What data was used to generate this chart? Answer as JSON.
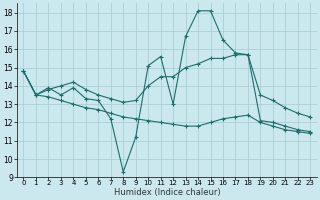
{
  "xlabel": "Humidex (Indice chaleur)",
  "background_color": "#cce8ef",
  "grid_color": "#aacfd8",
  "line_color": "#1a6e6a",
  "xlim": [
    -0.5,
    23.5
  ],
  "ylim": [
    9,
    18.5
  ],
  "yticks": [
    9,
    10,
    11,
    12,
    13,
    14,
    15,
    16,
    17,
    18
  ],
  "xticks": [
    0,
    1,
    2,
    3,
    4,
    5,
    6,
    7,
    8,
    9,
    10,
    11,
    12,
    13,
    14,
    15,
    16,
    17,
    18,
    19,
    20,
    21,
    22,
    23
  ],
  "series": [
    {
      "x": [
        0,
        1,
        2,
        3,
        4,
        5,
        6,
        7,
        8,
        9,
        10,
        11,
        12,
        13,
        14,
        15,
        16,
        17,
        18,
        19,
        20,
        21,
        22,
        23
      ],
      "y": [
        14.8,
        13.5,
        13.9,
        13.5,
        13.9,
        13.3,
        13.2,
        12.2,
        9.3,
        11.2,
        15.1,
        15.6,
        13.0,
        16.7,
        18.1,
        18.1,
        16.5,
        15.8,
        15.7,
        12.1,
        12.0,
        11.8,
        11.6,
        11.5
      ]
    },
    {
      "x": [
        0,
        1,
        2,
        3,
        4,
        5,
        6,
        7,
        8,
        9,
        10,
        11,
        12,
        13,
        14,
        15,
        16,
        17,
        18,
        19,
        20,
        21,
        22,
        23
      ],
      "y": [
        14.8,
        13.5,
        13.8,
        14.0,
        14.2,
        13.8,
        13.5,
        13.3,
        13.1,
        13.2,
        14.0,
        14.5,
        14.5,
        15.0,
        15.2,
        15.5,
        15.5,
        15.7,
        15.7,
        13.5,
        13.2,
        12.8,
        12.5,
        12.3
      ]
    },
    {
      "x": [
        0,
        1,
        2,
        3,
        4,
        5,
        6,
        7,
        8,
        9,
        10,
        11,
        12,
        13,
        14,
        15,
        16,
        17,
        18,
        19,
        20,
        21,
        22,
        23
      ],
      "y": [
        14.8,
        13.5,
        13.4,
        13.2,
        13.0,
        12.8,
        12.7,
        12.5,
        12.3,
        12.2,
        12.1,
        12.0,
        11.9,
        11.8,
        11.8,
        12.0,
        12.2,
        12.3,
        12.4,
        12.0,
        11.8,
        11.6,
        11.5,
        11.4
      ]
    }
  ]
}
